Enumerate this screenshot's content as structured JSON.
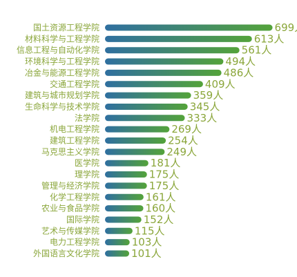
{
  "chart_data": {
    "type": "bar",
    "orientation": "horizontal",
    "title": "",
    "xlabel": "",
    "ylabel": "",
    "unit_suffix": "人",
    "xlim": [
      0,
      720
    ],
    "grid": false,
    "legend": "none",
    "categories": [
      "国土资源工程学院",
      "材料科学与工程学院",
      "信息工程与自动化学院",
      "环境科学与工程学院",
      "冶金与能源工程学院",
      "交通工程学院",
      "建筑与城市规划学院",
      "生命科学与技术学院",
      "法学院",
      "机电工程学院",
      "建筑工程学院",
      "马克思主义学院",
      "医学院",
      "理学院",
      "管理与经济学院",
      "化学工程学院",
      "农业与食品学院",
      "国际学院",
      "艺术与传媒学院",
      "电力工程学院",
      "外国语言文化学院"
    ],
    "values": [
      699,
      613,
      561,
      494,
      486,
      409,
      359,
      345,
      333,
      269,
      254,
      249,
      181,
      175,
      175,
      161,
      160,
      152,
      115,
      103,
      101
    ],
    "colors": {
      "bar_start": "#2f6fa0",
      "bar_end": "#54a33a",
      "label": "#8aa63a"
    }
  }
}
